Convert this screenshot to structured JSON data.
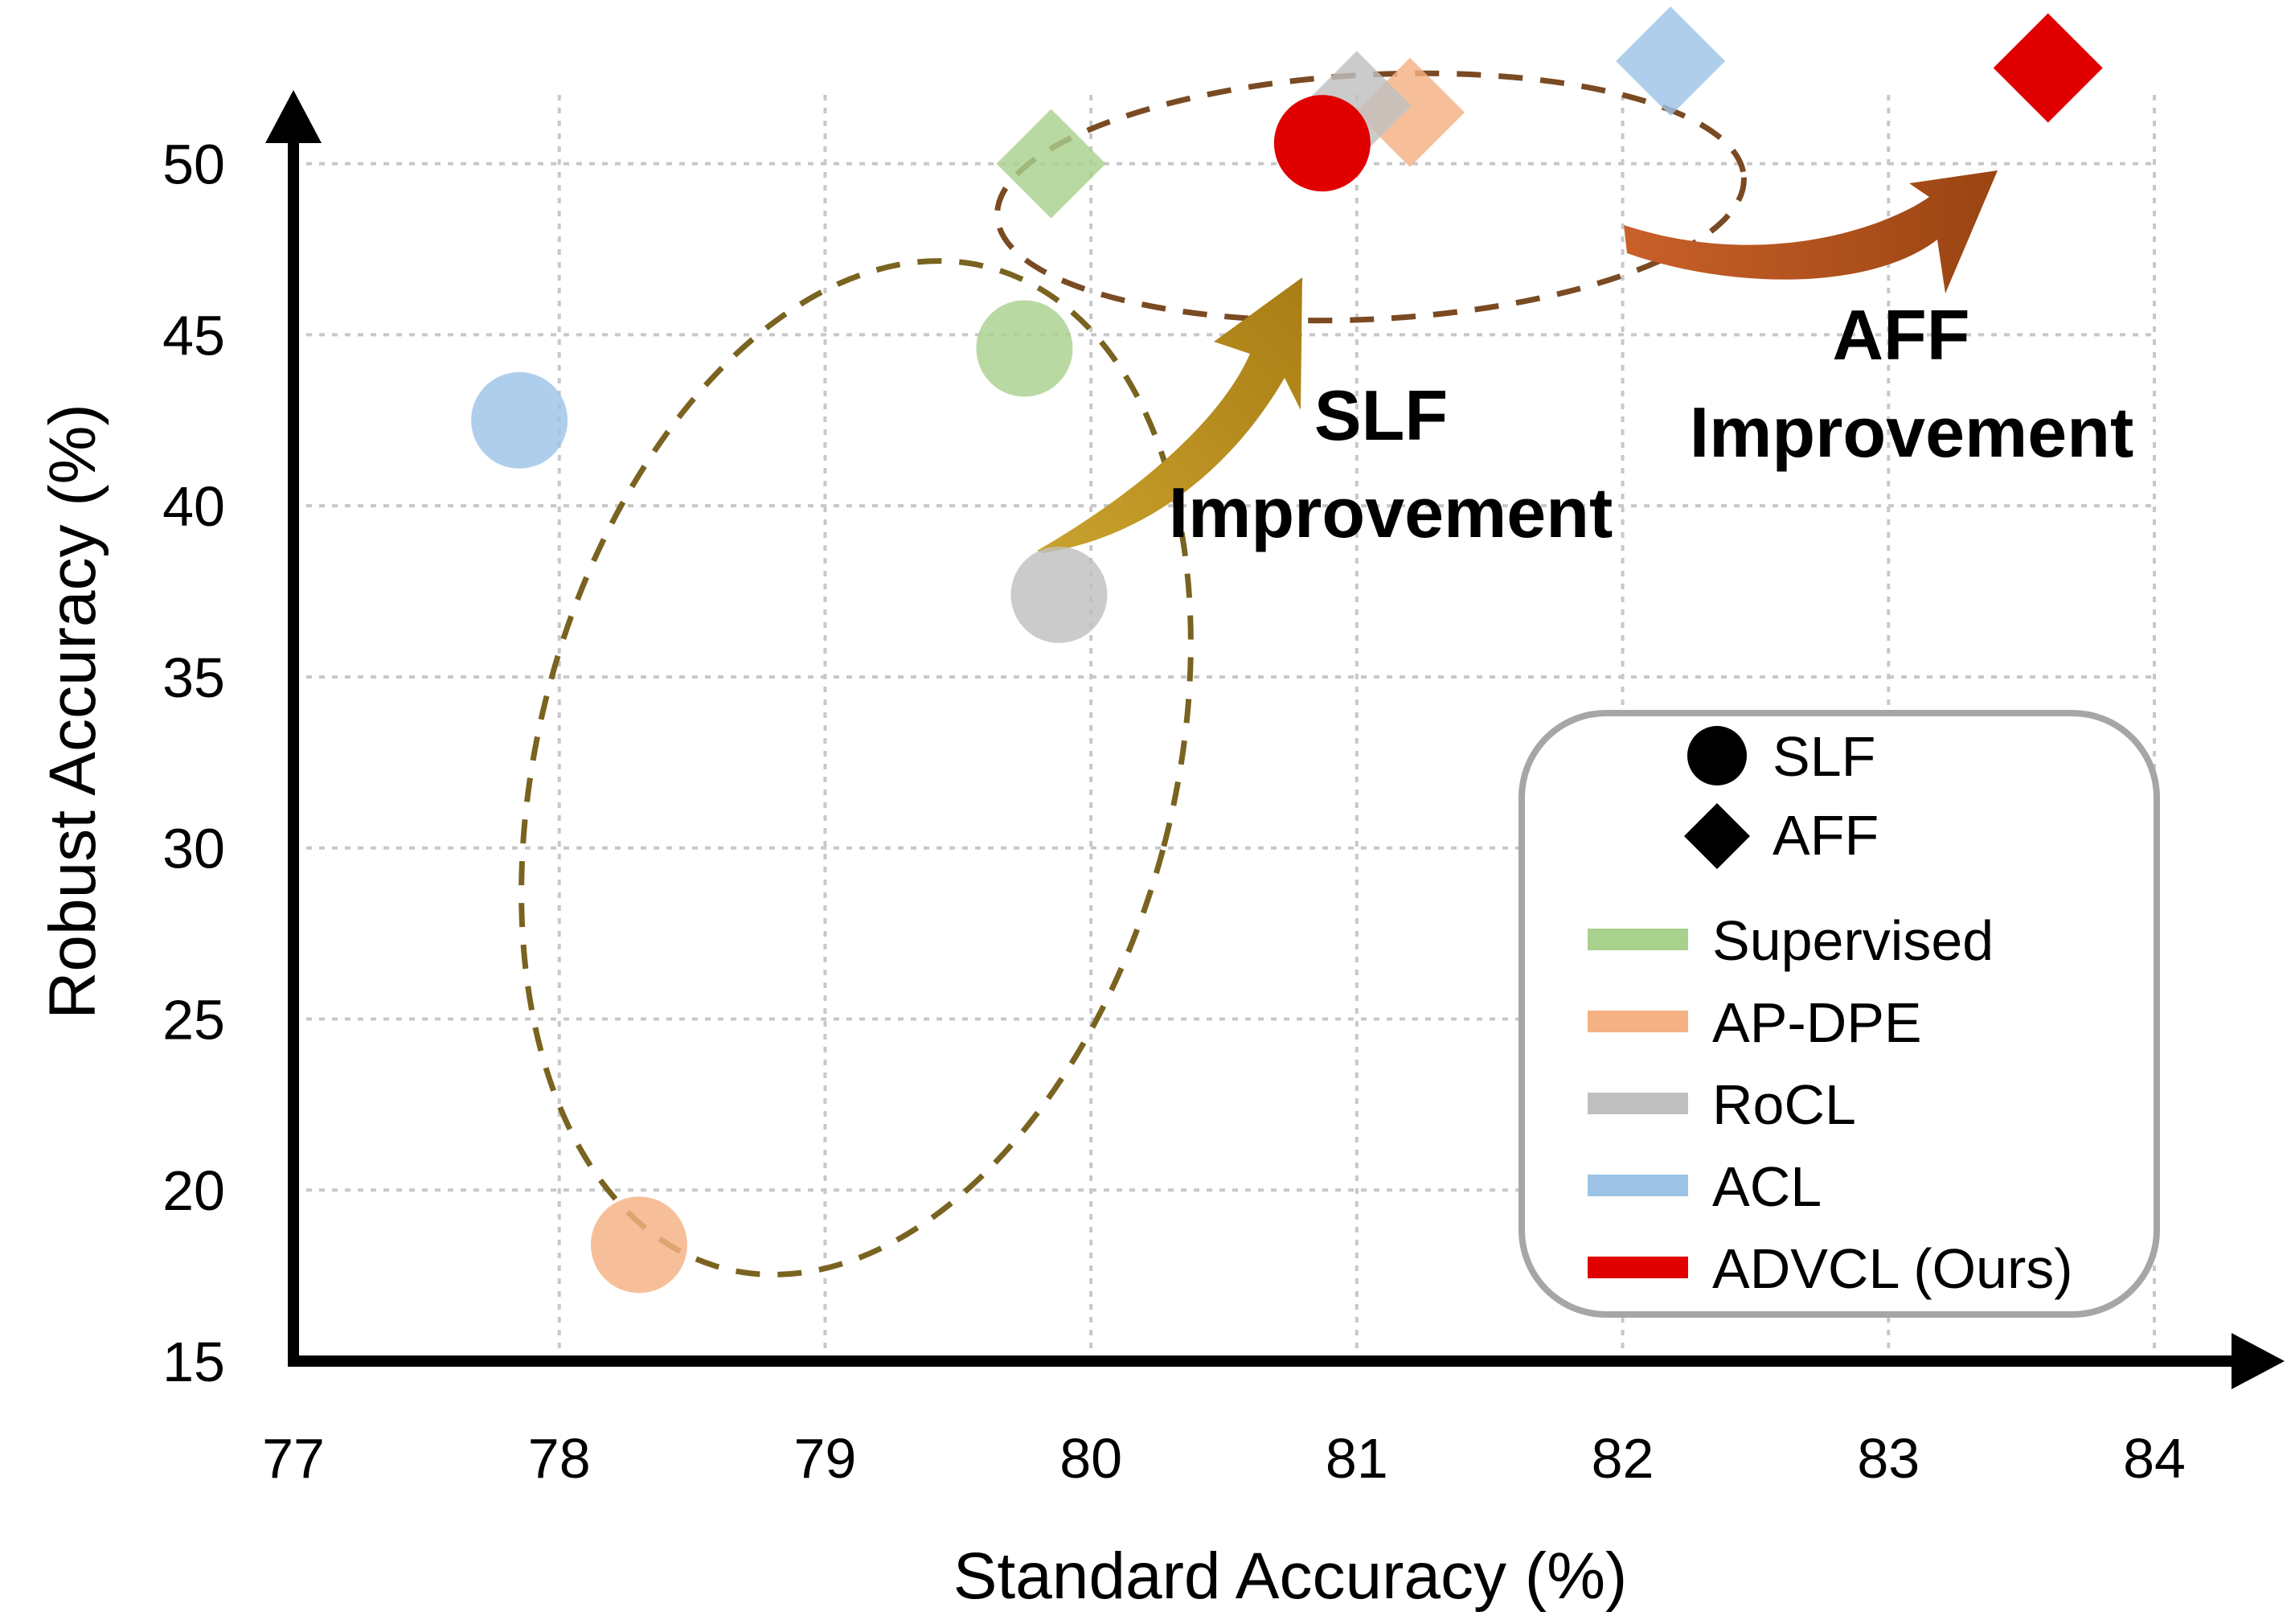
{
  "chart_data": {
    "type": "scatter",
    "xlabel": "Standard Accuracy (%)",
    "ylabel": "Robust Accuracy (%)",
    "xlim": [
      77,
      84
    ],
    "ylim": [
      15,
      53
    ],
    "x_ticks": [
      77,
      78,
      79,
      80,
      81,
      82,
      83,
      84
    ],
    "y_ticks": [
      15,
      20,
      25,
      30,
      35,
      40,
      45,
      50
    ],
    "grid": true,
    "legend_position": "bottom-right",
    "markers": [
      {
        "name": "SLF",
        "shape": "circle"
      },
      {
        "name": "AFF",
        "shape": "diamond"
      }
    ],
    "series": [
      {
        "name": "Supervised",
        "color": "#a9d18e",
        "points": [
          {
            "shape": "circle",
            "x": 79.75,
            "y": 44.6
          },
          {
            "shape": "diamond",
            "x": 79.85,
            "y": 50.0
          }
        ]
      },
      {
        "name": "AP-DPE",
        "color": "#f4b183",
        "points": [
          {
            "shape": "circle",
            "x": 78.3,
            "y": 18.4
          },
          {
            "shape": "diamond",
            "x": 81.2,
            "y": 51.5
          }
        ]
      },
      {
        "name": "RoCL",
        "color": "#bfbfbf",
        "points": [
          {
            "shape": "circle",
            "x": 79.88,
            "y": 37.4
          },
          {
            "shape": "diamond",
            "x": 81.0,
            "y": 51.7
          }
        ]
      },
      {
        "name": "ACL",
        "color": "#9dc3e6",
        "points": [
          {
            "shape": "circle",
            "x": 77.85,
            "y": 42.5
          },
          {
            "shape": "diamond",
            "x": 82.18,
            "y": 53.0
          }
        ]
      },
      {
        "name": "ADVCL (Ours)",
        "color": "#e00000",
        "points": [
          {
            "shape": "circle",
            "x": 80.87,
            "y": 50.6
          },
          {
            "shape": "diamond",
            "x": 83.6,
            "y": 52.8
          }
        ]
      }
    ],
    "annotations": [
      {
        "line1": "SLF",
        "line2": "Improvement"
      },
      {
        "line1": "AFF",
        "line2": "Improvement"
      }
    ]
  },
  "legend": {
    "marker_labels": [
      "SLF",
      "AFF"
    ],
    "series_labels": [
      "Supervised",
      "AP-DPE",
      "RoCL",
      "ACL",
      "ADVCL (Ours)"
    ]
  }
}
